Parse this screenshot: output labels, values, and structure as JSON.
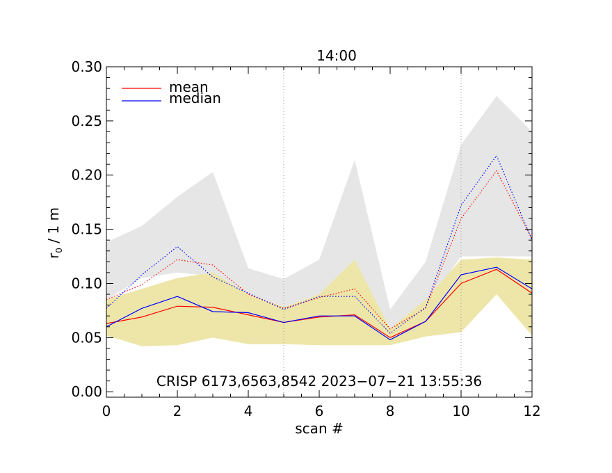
{
  "chart_data": {
    "type": "line",
    "title": "14:00",
    "xlabel": "scan #",
    "ylabel_main": "r",
    "ylabel_sub": "0",
    "ylabel_rest": " / 1 m",
    "xlim": [
      0,
      12
    ],
    "ylim": [
      -0.005,
      0.3
    ],
    "xticks": [
      0,
      2,
      4,
      6,
      8,
      10,
      12
    ],
    "xtick_labels": [
      "0",
      "2",
      "4",
      "6",
      "8",
      "10",
      "12"
    ],
    "yticks": [
      0.0,
      0.05,
      0.1,
      0.15,
      0.2,
      0.25,
      0.3
    ],
    "ytick_labels": [
      "0.00",
      "0.05",
      "0.10",
      "0.15",
      "0.20",
      "0.25",
      "0.30"
    ],
    "vlines": [
      5,
      10
    ],
    "annotation": "CRISP 6173,6563,8542 2023−07−21 13:55:36",
    "x": [
      0,
      1,
      2,
      3,
      4,
      5,
      6,
      7,
      8,
      9,
      10,
      11,
      12
    ],
    "bands": [
      {
        "name": "range-high",
        "color": "#e6e6e6",
        "lower": [
          0.085,
          0.105,
          0.11,
          0.107,
          0.09,
          0.078,
          0.09,
          0.09,
          0.058,
          0.078,
          0.125,
          0.125,
          0.125
        ],
        "upper": [
          0.138,
          0.153,
          0.18,
          0.203,
          0.114,
          0.104,
          0.122,
          0.214,
          0.076,
          0.12,
          0.228,
          0.273,
          0.24
        ]
      },
      {
        "name": "range-low",
        "color": "#ede6a8",
        "lower": [
          0.052,
          0.042,
          0.043,
          0.05,
          0.044,
          0.044,
          0.043,
          0.043,
          0.043,
          0.051,
          0.055,
          0.09,
          0.052
        ],
        "upper": [
          0.085,
          0.095,
          0.105,
          0.11,
          0.09,
          0.078,
          0.09,
          0.122,
          0.058,
          0.085,
          0.122,
          0.124,
          0.122
        ]
      }
    ],
    "series": [
      {
        "name": "mean",
        "color": "#ff0000",
        "dash": "solid",
        "values": [
          0.063,
          0.069,
          0.079,
          0.078,
          0.071,
          0.064,
          0.069,
          0.071,
          0.05,
          0.065,
          0.1,
          0.113,
          0.091
        ]
      },
      {
        "name": "median",
        "color": "#0000ff",
        "dash": "solid",
        "values": [
          0.06,
          0.077,
          0.088,
          0.074,
          0.073,
          0.064,
          0.07,
          0.07,
          0.048,
          0.065,
          0.108,
          0.115,
          0.095
        ]
      },
      {
        "name": "mean-high",
        "color": "#ff0000",
        "dash": "dotted",
        "values": [
          0.085,
          0.099,
          0.122,
          0.117,
          0.09,
          0.077,
          0.087,
          0.095,
          0.058,
          0.077,
          0.16,
          0.204,
          0.141
        ]
      },
      {
        "name": "median-high",
        "color": "#0000ff",
        "dash": "dotted",
        "values": [
          0.077,
          0.108,
          0.134,
          0.106,
          0.091,
          0.076,
          0.088,
          0.088,
          0.054,
          0.078,
          0.172,
          0.218,
          0.14
        ]
      }
    ],
    "legend": [
      {
        "label": "mean",
        "color": "#ff0000"
      },
      {
        "label": "median",
        "color": "#0000ff"
      }
    ],
    "legend_position": "top-left"
  }
}
